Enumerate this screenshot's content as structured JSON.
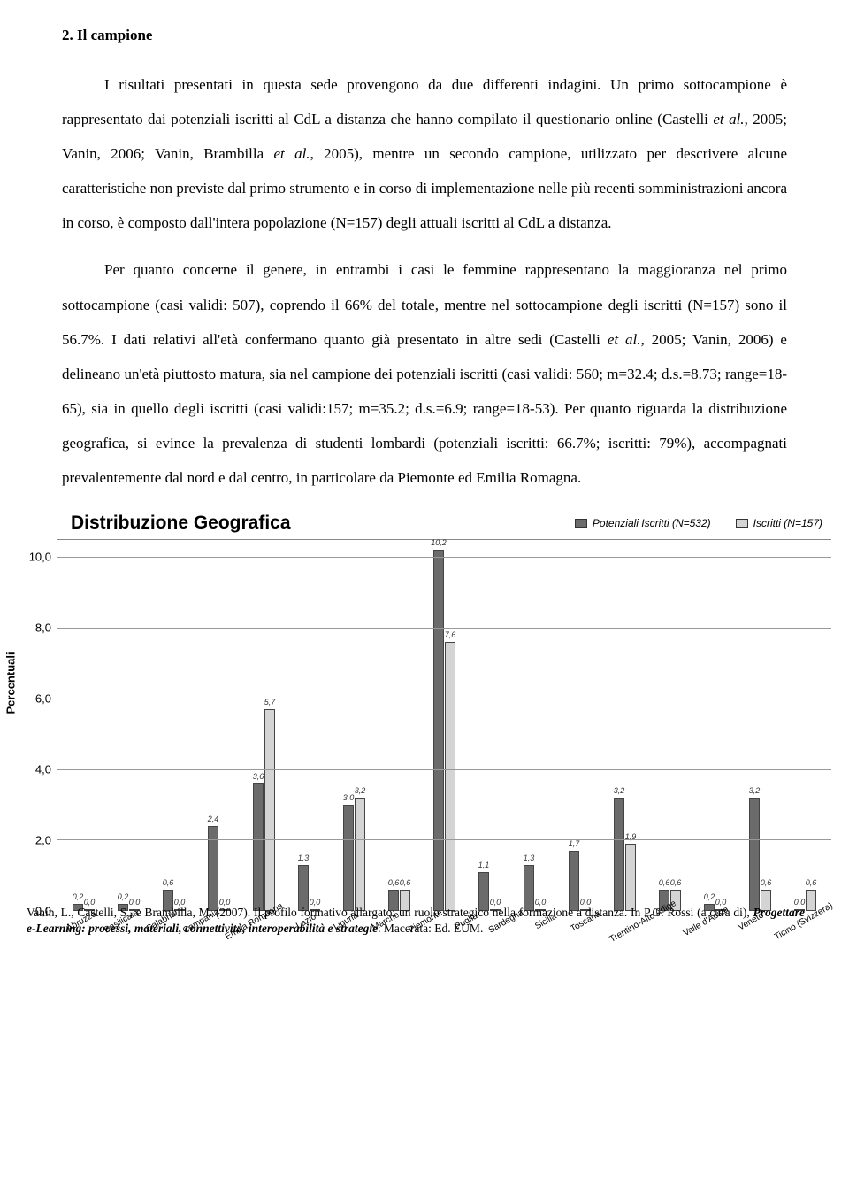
{
  "heading": "2.   Il campione",
  "para1_a": "I risultati presentati in questa sede provengono da due differenti indagini. Un primo sottocampione è rappresentato dai potenziali iscritti al CdL a distanza che hanno compilato il questionario online (Castelli ",
  "para1_b": "et al.",
  "para1_c": ", 2005; Vanin, 2006; Vanin, Brambilla ",
  "para1_d": "et al.",
  "para1_e": ", 2005), mentre un secondo campione, utilizzato per descrivere alcune caratteristiche non previste dal primo strumento e in corso di implementazione nelle più recenti somministrazioni ancora in corso, è composto dall'intera popolazione (N=157) degli attuali iscritti al CdL a distanza.",
  "para2_a": "Per quanto concerne il genere, in entrambi i casi le femmine rappresentano la maggioranza nel primo sottocampione (casi validi: 507), coprendo il 66% del totale, mentre nel sottocampione degli iscritti (N=157) sono il 56.7%. I dati relativi all'età confermano quanto già presentato in altre sedi (Castelli ",
  "para2_b": "et al.",
  "para2_c": ", 2005; Vanin, 2006) e delineano un'età piuttosto matura, sia nel campione dei potenziali iscritti (casi validi: 560; m=32.4; d.s.=8.73; range=18-65), sia in quello degli iscritti (casi validi:157; m=35.2; d.s.=6.9; range=18-53). Per quanto riguarda la distribuzione geografica, si evince la prevalenza di studenti lombardi (potenziali iscritti: 66.7%; iscritti: 79%), accompagnati prevalentemente dal nord e dal centro, in particolare da Piemonte ed Emilia Romagna.",
  "chart": {
    "title": "Distribuzione Geografica",
    "legend": [
      {
        "label": "Potenziali Iscritti (N=532)",
        "color": "#6b6b6b"
      },
      {
        "label": "Iscritti (N=157)",
        "color": "#d4d4d4"
      }
    ],
    "ylabel": "Percentuali",
    "ymax": 10.5,
    "yticks": [
      {
        "v": 0.0,
        "label": "0,0"
      },
      {
        "v": 2.0,
        "label": "2,0"
      },
      {
        "v": 4.0,
        "label": "4,0"
      },
      {
        "v": 6.0,
        "label": "6,0"
      },
      {
        "v": 8.0,
        "label": "8,0"
      },
      {
        "v": 10.0,
        "label": "10,0"
      }
    ],
    "bar_colors": [
      "#6b6b6b",
      "#d4d4d4"
    ],
    "grid_color": "#999999",
    "categories": [
      {
        "name": "Abruzzo",
        "v1": 0.2,
        "v2": 0.0
      },
      {
        "name": "Basilicata",
        "v1": 0.2,
        "v2": 0.0
      },
      {
        "name": "Calabria",
        "v1": 0.6,
        "v2": 0.0
      },
      {
        "name": "Campania",
        "v1": 2.4,
        "v2": 0.0
      },
      {
        "name": "Emilia Romagna",
        "v1": 3.6,
        "v2": 5.7
      },
      {
        "name": "Lazio",
        "v1": 1.3,
        "v2": 0.0
      },
      {
        "name": "Liguria",
        "v1": 3.0,
        "v2": 3.2
      },
      {
        "name": "Marche",
        "v1": 0.6,
        "v2": 0.6
      },
      {
        "name": "Piemonte",
        "v1": 10.2,
        "v2": 7.6
      },
      {
        "name": "Puglia",
        "v1": 1.1,
        "v2": 0.0
      },
      {
        "name": "Sardegna",
        "v1": 1.3,
        "v2": 0.0
      },
      {
        "name": "Sicilia",
        "v1": 1.7,
        "v2": 0.0
      },
      {
        "name": "Toscana",
        "v1": 3.2,
        "v2": 1.9
      },
      {
        "name": "Trentino-Alto Adige",
        "v1": 0.6,
        "v2": 0.6
      },
      {
        "name": "Valle d'Aosta",
        "v1": 0.2,
        "v2": 0.0
      },
      {
        "name": "Veneto",
        "v1": 3.2,
        "v2": 0.6
      },
      {
        "name": "Ticino (Svizzera)",
        "v1": 0.0,
        "v2": 0.6
      }
    ]
  },
  "footer_a": "Vanin, L., Castelli, S., e Brambilla, M. (2007). Il profilo formativo allargato: un ruolo strategico nella formazione a distanza. In P.G. Rossi (a cura di), ",
  "footer_b": "Progettare e-Learning: processi, materiali, connettività, interoperabilità e strategie",
  "footer_c": ". Macerata: Ed. EUM."
}
